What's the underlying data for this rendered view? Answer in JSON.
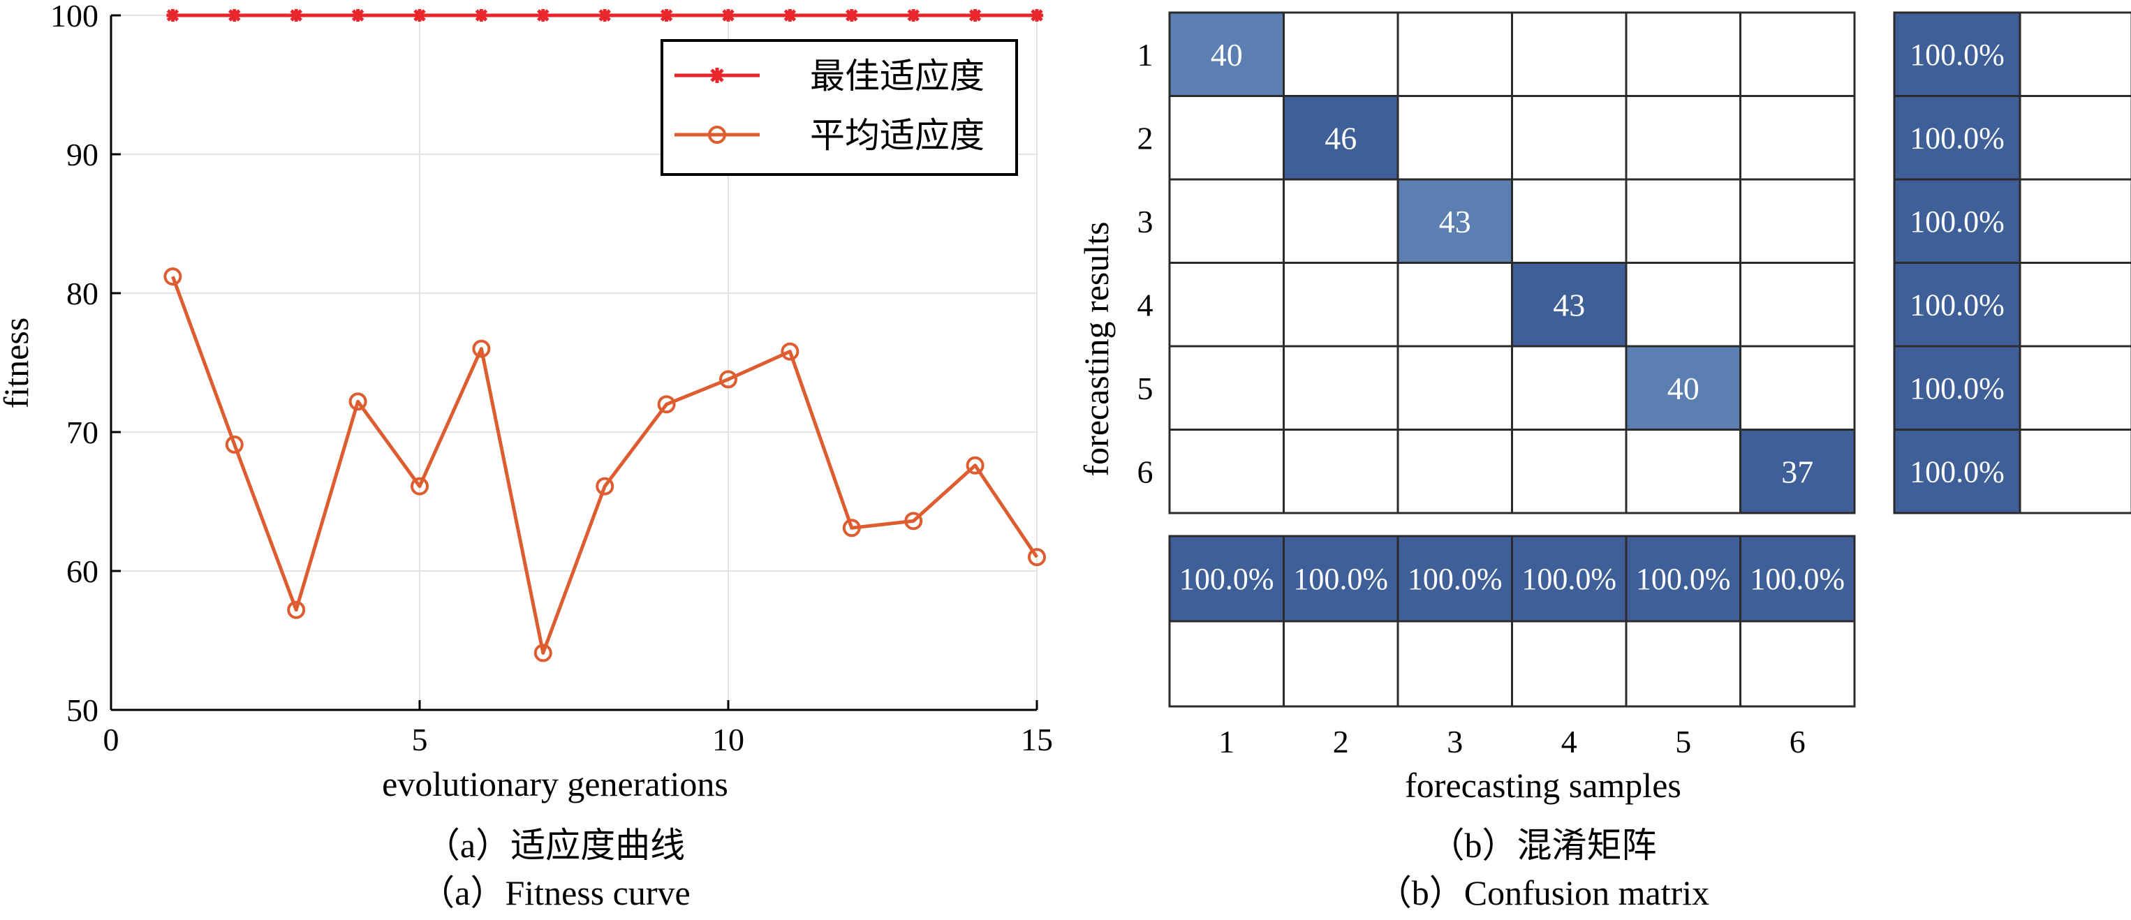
{
  "chart_data": [
    {
      "type": "line",
      "xlabel": "evolutionary generations",
      "ylabel": "fitness",
      "xlim": [
        0,
        15
      ],
      "ylim": [
        50,
        100
      ],
      "xticks": [
        0,
        5,
        10,
        15
      ],
      "yticks": [
        50,
        60,
        70,
        80,
        90,
        100
      ],
      "grid": true,
      "legend_position": "top-right",
      "series": [
        {
          "name": "最佳适应度",
          "marker": "asterisk",
          "color": "#e8262c",
          "x": [
            1,
            2,
            3,
            4,
            5,
            6,
            7,
            8,
            9,
            10,
            11,
            12,
            13,
            14,
            15
          ],
          "y": [
            100,
            100,
            100,
            100,
            100,
            100,
            100,
            100,
            100,
            100,
            100,
            100,
            100,
            100,
            100
          ]
        },
        {
          "name": "平均适应度",
          "marker": "circle",
          "color": "#dd5d30",
          "x": [
            1,
            2,
            3,
            4,
            5,
            6,
            7,
            8,
            9,
            10,
            11,
            12,
            13,
            14,
            15
          ],
          "y": [
            81.2,
            69.1,
            57.2,
            72.2,
            66.1,
            76.0,
            54.1,
            66.1,
            72.0,
            73.8,
            75.8,
            63.1,
            63.6,
            67.6,
            61.0
          ]
        }
      ],
      "caption_cn": "（a）适应度曲线",
      "caption_en": "（a）Fitness curve"
    },
    {
      "type": "heatmap",
      "xlabel": "forecasting samples",
      "ylabel": "forecasting results",
      "categories": [
        "1",
        "2",
        "3",
        "4",
        "5",
        "6"
      ],
      "cells": [
        {
          "row": 1,
          "col": 1,
          "value": 40
        },
        {
          "row": 2,
          "col": 2,
          "value": 46
        },
        {
          "row": 3,
          "col": 3,
          "value": 43
        },
        {
          "row": 4,
          "col": 4,
          "value": 43
        },
        {
          "row": 5,
          "col": 5,
          "value": 40
        },
        {
          "row": 6,
          "col": 6,
          "value": 37
        }
      ],
      "row_accuracy": [
        "100.0%",
        "100.0%",
        "100.0%",
        "100.0%",
        "100.0%",
        "100.0%"
      ],
      "col_accuracy": [
        "100.0%",
        "100.0%",
        "100.0%",
        "100.0%",
        "100.0%",
        "100.0%"
      ],
      "colors": {
        "dark": "#3f5f98",
        "light": "#5b7fb1"
      },
      "caption_cn": "（b）混淆矩阵",
      "caption_en": "（b）Confusion matrix"
    }
  ]
}
